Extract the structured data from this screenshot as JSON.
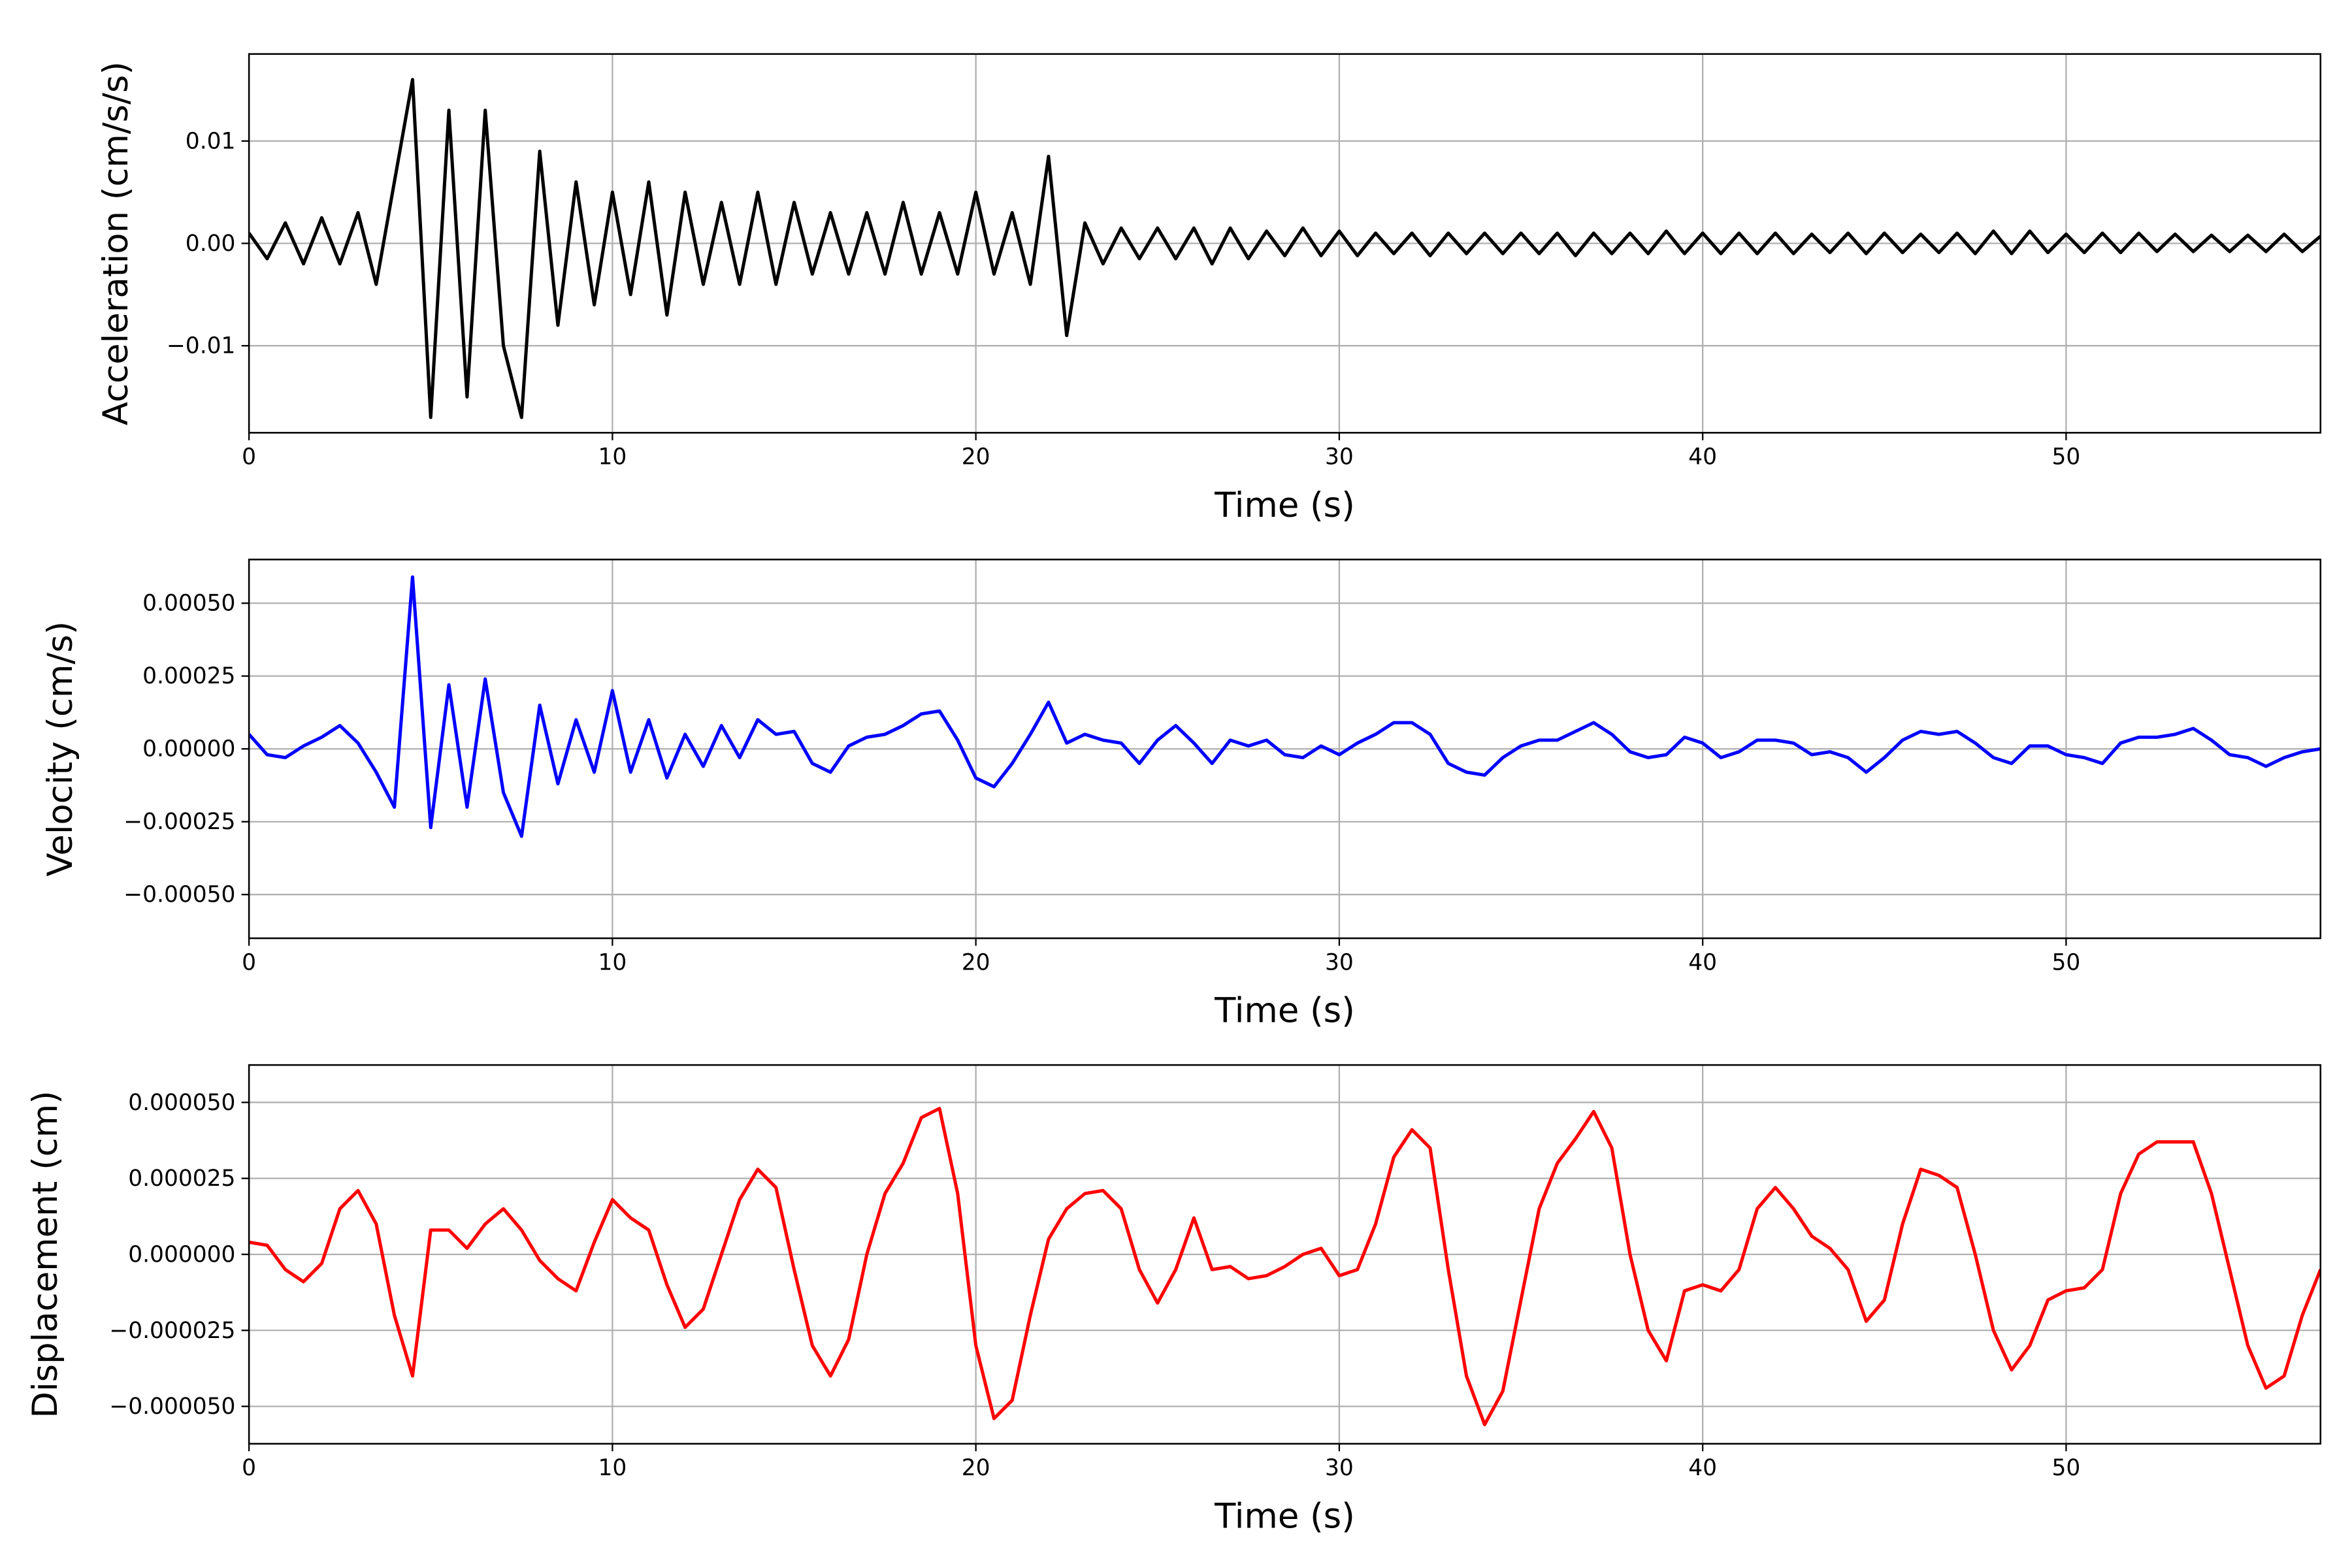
{
  "chart_data": [
    {
      "type": "line",
      "xlabel": "Time (s)",
      "ylabel": "Acceleration (cm/s/s)",
      "color": "#000000",
      "grid": true,
      "xlim": [
        0,
        57
      ],
      "xticks": [
        0,
        10,
        20,
        30,
        40,
        50
      ],
      "ylim": [
        -0.0185,
        0.0185
      ],
      "yticks": [
        {
          "value": -0.01,
          "label": "−0.01"
        },
        {
          "value": 0,
          "label": "0.00"
        },
        {
          "value": 0.01,
          "label": "0.01"
        }
      ],
      "x": [
        0,
        0.5,
        1,
        1.5,
        2,
        2.5,
        3,
        3.5,
        4,
        4.5,
        5,
        5.5,
        6,
        6.5,
        7,
        7.5,
        8,
        8.5,
        9,
        9.5,
        10,
        10.5,
        11,
        11.5,
        12,
        12.5,
        13,
        13.5,
        14,
        14.5,
        15,
        15.5,
        16,
        16.5,
        17,
        17.5,
        18,
        18.5,
        19,
        19.5,
        20,
        20.5,
        21,
        21.5,
        22,
        22.5,
        23,
        23.5,
        24,
        24.5,
        25,
        25.5,
        26,
        26.5,
        27,
        27.5,
        28,
        28.5,
        29,
        29.5,
        30,
        30.5,
        31,
        31.5,
        32,
        32.5,
        33,
        33.5,
        34,
        34.5,
        35,
        35.5,
        36,
        36.5,
        37,
        37.5,
        38,
        38.5,
        39,
        39.5,
        40,
        40.5,
        41,
        41.5,
        42,
        42.5,
        43,
        43.5,
        44,
        44.5,
        45,
        45.5,
        46,
        46.5,
        47,
        47.5,
        48,
        48.5,
        49,
        49.5,
        50,
        50.5,
        51,
        51.5,
        52,
        52.5,
        53,
        53.5,
        54,
        54.5,
        55,
        55.5,
        56,
        56.5,
        57
      ],
      "values": [
        0.001,
        -0.0015,
        0.002,
        -0.002,
        0.0025,
        -0.002,
        0.003,
        -0.004,
        0.006,
        0.016,
        -0.017,
        0.013,
        -0.015,
        0.013,
        -0.01,
        -0.017,
        0.009,
        -0.008,
        0.006,
        -0.006,
        0.005,
        -0.005,
        0.006,
        -0.007,
        0.005,
        -0.004,
        0.004,
        -0.004,
        0.005,
        -0.004,
        0.004,
        -0.003,
        0.003,
        -0.003,
        0.003,
        -0.003,
        0.004,
        -0.003,
        0.003,
        -0.003,
        0.005,
        -0.003,
        0.003,
        -0.004,
        0.0085,
        -0.009,
        0.002,
        -0.002,
        0.0015,
        -0.0015,
        0.0015,
        -0.0015,
        0.0015,
        -0.002,
        0.0015,
        -0.0015,
        0.0012,
        -0.0012,
        0.0015,
        -0.0012,
        0.0012,
        -0.0012,
        0.001,
        -0.001,
        0.001,
        -0.0012,
        0.001,
        -0.001,
        0.001,
        -0.001,
        0.001,
        -0.001,
        0.001,
        -0.0012,
        0.001,
        -0.001,
        0.001,
        -0.001,
        0.0012,
        -0.001,
        0.001,
        -0.001,
        0.001,
        -0.001,
        0.001,
        -0.001,
        0.0009,
        -0.0009,
        0.001,
        -0.001,
        0.001,
        -0.0009,
        0.0009,
        -0.0009,
        0.001,
        -0.001,
        0.0012,
        -0.001,
        0.0012,
        -0.0009,
        0.0009,
        -0.0009,
        0.001,
        -0.0009,
        0.001,
        -0.0008,
        0.0009,
        -0.0008,
        0.0008,
        -0.0008,
        0.0008,
        -0.0008,
        0.0009,
        -0.0008,
        0.0007
      ]
    },
    {
      "type": "line",
      "xlabel": "Time (s)",
      "ylabel": "Velocity (cm/s)",
      "color": "#0000ff",
      "grid": true,
      "xlim": [
        0,
        57
      ],
      "xticks": [
        0,
        10,
        20,
        30,
        40,
        50
      ],
      "ylim": [
        -0.00065,
        0.00065
      ],
      "yticks": [
        {
          "value": -0.0005,
          "label": "−0.00050"
        },
        {
          "value": -0.00025,
          "label": "−0.00025"
        },
        {
          "value": 0,
          "label": "0.00000"
        },
        {
          "value": 0.00025,
          "label": "0.00025"
        },
        {
          "value": 0.0005,
          "label": "0.00050"
        }
      ],
      "x": [
        0,
        0.5,
        1,
        1.5,
        2,
        2.5,
        3,
        3.5,
        4,
        4.5,
        5,
        5.5,
        6,
        6.5,
        7,
        7.5,
        8,
        8.5,
        9,
        9.5,
        10,
        10.5,
        11,
        11.5,
        12,
        12.5,
        13,
        13.5,
        14,
        14.5,
        15,
        15.5,
        16,
        16.5,
        17,
        17.5,
        18,
        18.5,
        19,
        19.5,
        20,
        20.5,
        21,
        21.5,
        22,
        22.5,
        23,
        23.5,
        24,
        24.5,
        25,
        25.5,
        26,
        26.5,
        27,
        27.5,
        28,
        28.5,
        29,
        29.5,
        30,
        30.5,
        31,
        31.5,
        32,
        32.5,
        33,
        33.5,
        34,
        34.5,
        35,
        35.5,
        36,
        36.5,
        37,
        37.5,
        38,
        38.5,
        39,
        39.5,
        40,
        40.5,
        41,
        41.5,
        42,
        42.5,
        43,
        43.5,
        44,
        44.5,
        45,
        45.5,
        46,
        46.5,
        47,
        47.5,
        48,
        48.5,
        49,
        49.5,
        50,
        50.5,
        51,
        51.5,
        52,
        52.5,
        53,
        53.5,
        54,
        54.5,
        55,
        55.5,
        56,
        56.5,
        57
      ],
      "values": [
        5e-05,
        -2e-05,
        -3e-05,
        1e-05,
        4e-05,
        8e-05,
        2e-05,
        -8e-05,
        -0.0002,
        0.00059,
        -0.00027,
        0.00022,
        -0.0002,
        0.00024,
        -0.00015,
        -0.0003,
        0.00015,
        -0.00012,
        0.0001,
        -8e-05,
        0.0002,
        -8e-05,
        0.0001,
        -0.0001,
        5e-05,
        -6e-05,
        8e-05,
        -3e-05,
        0.0001,
        5e-05,
        6e-05,
        -5e-05,
        -8e-05,
        1e-05,
        4e-05,
        5e-05,
        8e-05,
        0.00012,
        0.00013,
        3e-05,
        -0.0001,
        -0.00013,
        -5e-05,
        5e-05,
        0.00016,
        2e-05,
        5e-05,
        3e-05,
        2e-05,
        -5e-05,
        3e-05,
        8e-05,
        2e-05,
        -5e-05,
        3e-05,
        1e-05,
        3e-05,
        -2e-05,
        -3e-05,
        1e-05,
        -2e-05,
        2e-05,
        5e-05,
        9e-05,
        9e-05,
        5e-05,
        -5e-05,
        -8e-05,
        -9e-05,
        -3e-05,
        1e-05,
        3e-05,
        3e-05,
        6e-05,
        9e-05,
        5e-05,
        -1e-05,
        -3e-05,
        -2e-05,
        4e-05,
        2e-05,
        -3e-05,
        -1e-05,
        3e-05,
        3e-05,
        2e-05,
        -2e-05,
        -1e-05,
        -3e-05,
        -8e-05,
        -3e-05,
        3e-05,
        6e-05,
        5e-05,
        6e-05,
        2e-05,
        -3e-05,
        -5e-05,
        1e-05,
        1e-05,
        -2e-05,
        -3e-05,
        -5e-05,
        2e-05,
        4e-05,
        4e-05,
        5e-05,
        7e-05,
        3e-05,
        -2e-05,
        -3e-05,
        -6e-05,
        -3e-05,
        -1e-05,
        0
      ]
    },
    {
      "type": "line",
      "xlabel": "Time (s)",
      "ylabel": "Displacement (cm)",
      "color": "#ff0000",
      "grid": true,
      "xlim": [
        0,
        57
      ],
      "xticks": [
        0,
        10,
        20,
        30,
        40,
        50
      ],
      "ylim": [
        -6.23e-05,
        6.23e-05
      ],
      "yticks": [
        {
          "value": -5e-05,
          "label": "−0.000050"
        },
        {
          "value": -2.5e-05,
          "label": "−0.000025"
        },
        {
          "value": 0,
          "label": "0.000000"
        },
        {
          "value": 2.5e-05,
          "label": "0.000025"
        },
        {
          "value": 5e-05,
          "label": "0.000050"
        }
      ],
      "x": [
        0,
        0.5,
        1,
        1.5,
        2,
        2.5,
        3,
        3.5,
        4,
        4.5,
        5,
        5.5,
        6,
        6.5,
        7,
        7.5,
        8,
        8.5,
        9,
        9.5,
        10,
        10.5,
        11,
        11.5,
        12,
        12.5,
        13,
        13.5,
        14,
        14.5,
        15,
        15.5,
        16,
        16.5,
        17,
        17.5,
        18,
        18.5,
        19,
        19.5,
        20,
        20.5,
        21,
        21.5,
        22,
        22.5,
        23,
        23.5,
        24,
        24.5,
        25,
        25.5,
        26,
        26.5,
        27,
        27.5,
        28,
        28.5,
        29,
        29.5,
        30,
        30.5,
        31,
        31.5,
        32,
        32.5,
        33,
        33.5,
        34,
        34.5,
        35,
        35.5,
        36,
        36.5,
        37,
        37.5,
        38,
        38.5,
        39,
        39.5,
        40,
        40.5,
        41,
        41.5,
        42,
        42.5,
        43,
        43.5,
        44,
        44.5,
        45,
        45.5,
        46,
        46.5,
        47,
        47.5,
        48,
        48.5,
        49,
        49.5,
        50,
        50.5,
        51,
        51.5,
        52,
        52.5,
        53,
        53.5,
        54,
        54.5,
        55,
        55.5,
        56,
        56.5,
        57
      ],
      "values": [
        4e-06,
        3e-06,
        -5e-06,
        -9e-06,
        -3e-06,
        1.5e-05,
        2.1e-05,
        1e-05,
        -2e-05,
        -4e-05,
        8e-06,
        8e-06,
        2e-06,
        1e-05,
        1.5e-05,
        8e-06,
        -2e-06,
        -8e-06,
        -1.2e-05,
        4e-06,
        1.8e-05,
        1.2e-05,
        8e-06,
        -1e-05,
        -2.4e-05,
        -1.8e-05,
        0,
        1.8e-05,
        2.8e-05,
        2.2e-05,
        -5e-06,
        -3e-05,
        -4e-05,
        -2.8e-05,
        0,
        2e-05,
        3e-05,
        4.5e-05,
        4.8e-05,
        2e-05,
        -3e-05,
        -5.4e-05,
        -4.8e-05,
        -2e-05,
        5e-06,
        1.5e-05,
        2e-05,
        2.1e-05,
        1.5e-05,
        -5e-06,
        -1.6e-05,
        -5e-06,
        1.2e-05,
        -5e-06,
        -4e-06,
        -8e-06,
        -7e-06,
        -4e-06,
        0,
        2e-06,
        -7e-06,
        -5e-06,
        1e-05,
        3.2e-05,
        4.1e-05,
        3.5e-05,
        -5e-06,
        -4e-05,
        -5.6e-05,
        -4.5e-05,
        -1.5e-05,
        1.5e-05,
        3e-05,
        3.8e-05,
        4.7e-05,
        3.5e-05,
        0,
        -2.5e-05,
        -3.5e-05,
        -1.2e-05,
        -1e-05,
        -1.2e-05,
        -5e-06,
        1.5e-05,
        2.2e-05,
        1.5e-05,
        6e-06,
        2e-06,
        -5e-06,
        -2.2e-05,
        -1.5e-05,
        1e-05,
        2.8e-05,
        2.6e-05,
        2.2e-05,
        0,
        -2.5e-05,
        -3.8e-05,
        -3e-05,
        -1.5e-05,
        -1.2e-05,
        -1.1e-05,
        -5e-06,
        2e-05,
        3.3e-05,
        3.7e-05,
        3.7e-05,
        3.7e-05,
        2e-05,
        -5e-06,
        -3e-05,
        -4.4e-05,
        -4e-05,
        -2e-05,
        -5e-06
      ]
    }
  ]
}
